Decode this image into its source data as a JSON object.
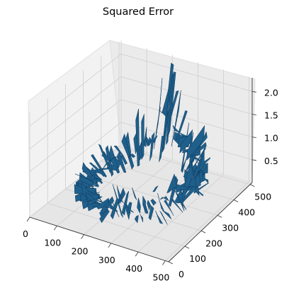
{
  "chart_data": {
    "type": "surface",
    "title": "Squared Error",
    "x_ticks": [
      "0",
      "100",
      "200",
      "300",
      "400",
      "500"
    ],
    "y_ticks": [
      "0",
      "100",
      "200",
      "300",
      "400",
      "500"
    ],
    "z_ticks": [
      "0.5",
      "1.0",
      "1.5",
      "2.0"
    ],
    "xlim": [
      0,
      512
    ],
    "ylim": [
      0,
      512
    ],
    "zlim": [
      0,
      2.3
    ],
    "grid": true,
    "surface_color": "#1f5f8b",
    "surface_edge_color": "#0d3a5e",
    "pane_color": "#f2f2f2",
    "note_shape": "ring-shaped region of non-zero error; interior and exterior empty",
    "surface_samples": [
      {
        "x": 150,
        "y": 440,
        "z": 0.8
      },
      {
        "x": 180,
        "y": 470,
        "z": 1.6
      },
      {
        "x": 210,
        "y": 480,
        "z": 1.9
      },
      {
        "x": 240,
        "y": 470,
        "z": 2.1
      },
      {
        "x": 300,
        "y": 420,
        "z": 1.0
      },
      {
        "x": 380,
        "y": 380,
        "z": 1.2
      },
      {
        "x": 420,
        "y": 300,
        "z": 1.1
      },
      {
        "x": 440,
        "y": 200,
        "z": 1.3
      },
      {
        "x": 430,
        "y": 120,
        "z": 1.0
      },
      {
        "x": 380,
        "y": 60,
        "z": 0.9
      },
      {
        "x": 300,
        "y": 40,
        "z": 1.2
      },
      {
        "x": 220,
        "y": 50,
        "z": 0.6
      },
      {
        "x": 150,
        "y": 100,
        "z": 0.7
      },
      {
        "x": 110,
        "y": 200,
        "z": 0.5
      },
      {
        "x": 110,
        "y": 320,
        "z": 0.6
      }
    ]
  }
}
